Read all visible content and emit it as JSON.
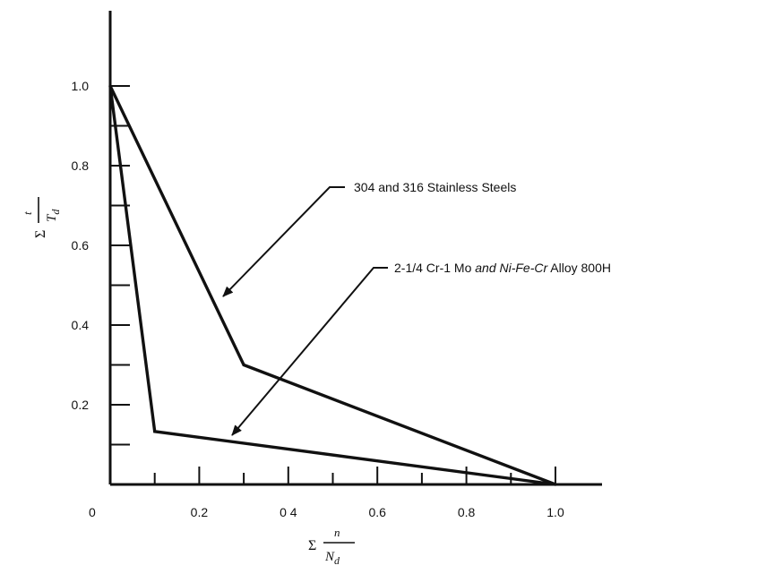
{
  "chart_data": {
    "type": "line",
    "title": "",
    "x_axis": {
      "range": [
        0,
        1.12
      ],
      "ticks": [
        0.2,
        0.4,
        0.6,
        0.8,
        1.0
      ],
      "tick_labels": [
        "0.2",
        "0 4",
        "0.6",
        "0.8",
        "1.0"
      ],
      "minor_ticks": [
        0.1,
        0.3,
        0.5,
        0.7,
        0.9
      ],
      "origin_label": "0",
      "label_sigma": "Σ",
      "label_numerator": "n",
      "label_denominator_main": "N",
      "label_denominator_sub": "d"
    },
    "y_axis": {
      "range": [
        0,
        1.12
      ],
      "ticks": [
        0.2,
        0.4,
        0.6,
        0.8,
        1.0
      ],
      "tick_labels": [
        "0.2",
        "0.4",
        "0.6",
        "0.8",
        "1.0"
      ],
      "minor_ticks": [
        0.1,
        0.3,
        0.5,
        0.7,
        0.9
      ],
      "label_sigma": "Σ",
      "label_numerator": "t",
      "label_denominator_main": "T",
      "label_denominator_sub": "d"
    },
    "series": [
      {
        "id": "ss",
        "name": "304 and 316 Stainless Steels",
        "x": [
          0.0,
          0.3,
          1.0
        ],
        "y": [
          1.0,
          0.3,
          0.0
        ],
        "arrow_target": [
          0.25,
          0.43
        ]
      },
      {
        "id": "crmo",
        "name_parts": [
          "2-1/4 Cr-1 Mo",
          " and ",
          "Ni-Fe-Cr",
          " Alloy 800H"
        ],
        "x": [
          0.0,
          0.1,
          1.0
        ],
        "y": [
          1.0,
          0.133,
          0.0
        ],
        "arrow_target": [
          0.26,
          0.108
        ]
      }
    ],
    "grid": false,
    "legend": "none (direct labels with leader arrows)"
  }
}
